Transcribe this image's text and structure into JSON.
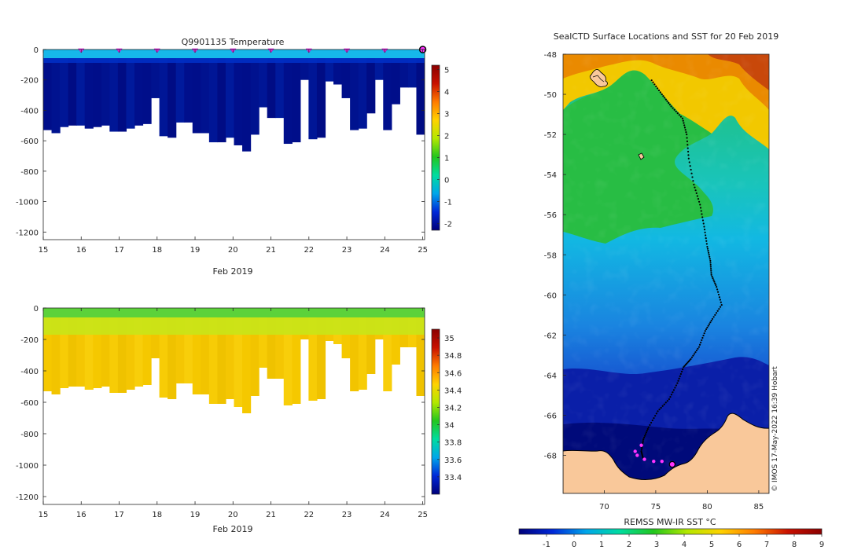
{
  "chart_data": [
    {
      "type": "heatmap",
      "title": "Q9901135  Temperature",
      "xlabel": "Feb 2019",
      "ylabel": "",
      "x_ticks": [
        15,
        16,
        17,
        18,
        19,
        20,
        21,
        22,
        23,
        24,
        25
      ],
      "xlim": [
        15,
        25.05
      ],
      "y_ticks": [
        0,
        -200,
        -400,
        -600,
        -800,
        -1000,
        -1200
      ],
      "ylim": [
        -1250,
        0
      ],
      "profile_markers_x": [
        16,
        17,
        18,
        19,
        20,
        21,
        22,
        23,
        24
      ],
      "current_marker_x": 25,
      "profile_bottom_depths": [
        -530,
        -550,
        -510,
        -500,
        -500,
        -520,
        -510,
        -500,
        -540,
        -540,
        -520,
        -500,
        -490,
        -320,
        -570,
        -580,
        -480,
        -480,
        -550,
        -550,
        -610,
        -610,
        -580,
        -630,
        -670,
        -560,
        -380,
        -450,
        -450,
        -620,
        -610,
        -200,
        -590,
        -580,
        -210,
        -230,
        -320,
        -530,
        -520,
        -420,
        -200,
        -530,
        -360,
        -250,
        -250,
        -560
      ],
      "colorbar": {
        "ticks": [
          5,
          4,
          3,
          2,
          1,
          0,
          -1,
          -2
        ],
        "range": [
          -2.3,
          5.2
        ],
        "colors": [
          "#00007a",
          "#0028d8",
          "#00a6ea",
          "#00dca0",
          "#22c61e",
          "#b4e800",
          "#ffd200",
          "#ff7b00",
          "#c81000",
          "#8b0000"
        ]
      }
    },
    {
      "type": "heatmap",
      "title": "",
      "xlabel": "Feb 2019",
      "ylabel": "",
      "x_ticks": [
        15,
        16,
        17,
        18,
        19,
        20,
        21,
        22,
        23,
        24,
        25
      ],
      "xlim": [
        15,
        25.05
      ],
      "y_ticks": [
        0,
        -200,
        -400,
        -600,
        -800,
        -1000,
        -1200
      ],
      "ylim": [
        -1250,
        0
      ],
      "colorbar": {
        "ticks": [
          35,
          34.8,
          34.6,
          34.4,
          34.2,
          34,
          33.8,
          33.6,
          33.4
        ],
        "range": [
          33.2,
          35.1
        ],
        "colors": [
          "#00007a",
          "#0028d8",
          "#00a6ea",
          "#00dca0",
          "#22c61e",
          "#b4e800",
          "#ffd200",
          "#ff7b00",
          "#c81000",
          "#8b0000"
        ]
      }
    },
    {
      "type": "heatmap",
      "title": "SealCTD Surface Locations and SST for 20 Feb 2019",
      "xlabel": "",
      "ylabel": "",
      "x_ticks": [
        70,
        75,
        80,
        85
      ],
      "xlim": [
        66,
        86
      ],
      "y_ticks": [
        -48,
        -50,
        -52,
        -54,
        -56,
        -58,
        -60,
        -62,
        -64,
        -66,
        -68
      ],
      "ylim": [
        -69.9,
        -48
      ],
      "colorbar_label": "REMSS MW-IR SST °C",
      "colorbar": {
        "ticks": [
          -1,
          0,
          1,
          2,
          3,
          4,
          5,
          6,
          7,
          8,
          9
        ],
        "range": [
          -2,
          9
        ],
        "colors": [
          "#00007a",
          "#0028d8",
          "#00a6ea",
          "#00dca0",
          "#22c61e",
          "#b4e800",
          "#ffd200",
          "#ff7b00",
          "#c81000",
          "#8b0000"
        ]
      },
      "track": [
        [
          74.6,
          -49.3
        ],
        [
          75.6,
          -50.0
        ],
        [
          76.5,
          -50.6
        ],
        [
          77.6,
          -51.2
        ],
        [
          78.0,
          -52.0
        ],
        [
          78.2,
          -53.2
        ],
        [
          78.7,
          -54.5
        ],
        [
          79.3,
          -55.5
        ],
        [
          79.7,
          -56.6
        ],
        [
          80.0,
          -57.6
        ],
        [
          80.3,
          -58.3
        ],
        [
          80.4,
          -59.0
        ],
        [
          80.9,
          -59.6
        ],
        [
          81.4,
          -60.5
        ],
        [
          80.5,
          -61.2
        ],
        [
          79.8,
          -61.8
        ],
        [
          79.2,
          -62.6
        ],
        [
          78.4,
          -63.2
        ],
        [
          77.7,
          -63.6
        ],
        [
          77.1,
          -64.4
        ],
        [
          76.3,
          -65.2
        ],
        [
          75.2,
          -65.8
        ],
        [
          74.3,
          -66.6
        ],
        [
          73.8,
          -67.2
        ],
        [
          73.6,
          -67.8
        ],
        [
          73.8,
          -68.2
        ]
      ],
      "magenta_points": [
        [
          73.6,
          -67.5
        ],
        [
          73.0,
          -67.8
        ],
        [
          73.2,
          -68.0
        ],
        [
          73.9,
          -68.2
        ],
        [
          74.8,
          -68.3
        ],
        [
          75.6,
          -68.3
        ]
      ],
      "current_position": [
        76.6,
        -68.45
      ],
      "credit": "© IMOS 17-May-2022 16:39 Hobart"
    }
  ]
}
